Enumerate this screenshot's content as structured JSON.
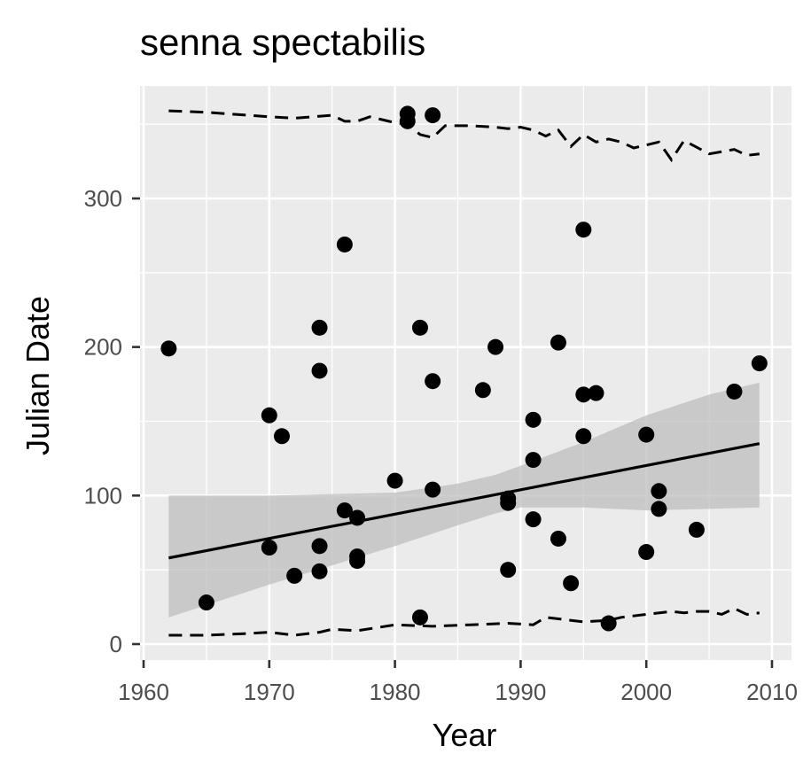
{
  "chart_data": {
    "type": "scatter",
    "title": "senna spectabilis",
    "xlabel": "Year",
    "ylabel": "Julian Date",
    "xlim": [
      1960,
      2010
    ],
    "ylim": [
      0,
      360
    ],
    "xticks": [
      "1960",
      "1970",
      "1980",
      "1990",
      "2000",
      "2010"
    ],
    "yticks": [
      "0",
      "100",
      "200",
      "300"
    ],
    "grid": true,
    "legend": "none",
    "colors": {
      "panel": "#ebebeb",
      "grid": "#ffffff",
      "points": "#000000",
      "band": "#bdbdbd"
    },
    "points": [
      [
        1962,
        199
      ],
      [
        1965,
        28
      ],
      [
        1970,
        154
      ],
      [
        1970,
        65
      ],
      [
        1971,
        140
      ],
      [
        1972,
        46
      ],
      [
        1974,
        213
      ],
      [
        1974,
        184
      ],
      [
        1974,
        66
      ],
      [
        1974,
        49
      ],
      [
        1976,
        269
      ],
      [
        1976,
        90
      ],
      [
        1977,
        85
      ],
      [
        1977,
        59
      ],
      [
        1977,
        56
      ],
      [
        1980,
        110
      ],
      [
        1981,
        357
      ],
      [
        1981,
        352
      ],
      [
        1982,
        213
      ],
      [
        1982,
        18
      ],
      [
        1983,
        356
      ],
      [
        1983,
        177
      ],
      [
        1983,
        104
      ],
      [
        1987,
        171
      ],
      [
        1988,
        200
      ],
      [
        1989,
        98
      ],
      [
        1989,
        95
      ],
      [
        1989,
        50
      ],
      [
        1991,
        151
      ],
      [
        1991,
        124
      ],
      [
        1991,
        84
      ],
      [
        1993,
        203
      ],
      [
        1993,
        71
      ],
      [
        1994,
        41
      ],
      [
        1995,
        279
      ],
      [
        1995,
        168
      ],
      [
        1995,
        140
      ],
      [
        1996,
        169
      ],
      [
        1997,
        14
      ],
      [
        2000,
        141
      ],
      [
        2000,
        62
      ],
      [
        2001,
        103
      ],
      [
        2001,
        91
      ],
      [
        2004,
        77
      ],
      [
        2007,
        170
      ],
      [
        2009,
        189
      ]
    ],
    "trend_line": [
      [
        1962,
        58
      ],
      [
        2009,
        135
      ]
    ],
    "confidence_band": {
      "x": [
        1962,
        1970,
        1980,
        1985,
        1988,
        1990,
        1995,
        2000,
        2005,
        2009
      ],
      "lower": [
        18,
        40,
        66,
        80,
        88,
        92,
        92,
        90,
        91,
        92
      ],
      "upper": [
        100,
        100,
        102,
        108,
        114,
        120,
        136,
        154,
        168,
        176
      ]
    },
    "upper_dashed": {
      "x": [
        1962,
        1965,
        1970,
        1972,
        1975,
        1976,
        1977,
        1978,
        1979,
        1980,
        1981,
        1982,
        1983,
        1984,
        1986,
        1988,
        1989,
        1990,
        1991,
        1992,
        1993,
        1994,
        1995,
        1996,
        1997,
        1998,
        1999,
        2000,
        2001,
        2002,
        2003,
        2005,
        2007,
        2008,
        2009
      ],
      "y": [
        359,
        358,
        355,
        354,
        356,
        352,
        352,
        355,
        353,
        351,
        350,
        343,
        341,
        349,
        349,
        348,
        347,
        348,
        346,
        342,
        346,
        335,
        343,
        338,
        340,
        338,
        334,
        336,
        338,
        326,
        339,
        330,
        333,
        329,
        330
      ]
    },
    "lower_dashed": {
      "x": [
        1962,
        1965,
        1968,
        1970,
        1972,
        1974,
        1975,
        1977,
        1980,
        1983,
        1986,
        1989,
        1991,
        1992,
        1995,
        1997,
        1998,
        2000,
        2002,
        2003,
        2004,
        2005,
        2006,
        2007,
        2008,
        2009
      ],
      "y": [
        6,
        6,
        7,
        8,
        6,
        8,
        10,
        9,
        13,
        12,
        13,
        14,
        13,
        18,
        15,
        16,
        18,
        20,
        22,
        21,
        22,
        22,
        20,
        24,
        20,
        21
      ]
    }
  }
}
